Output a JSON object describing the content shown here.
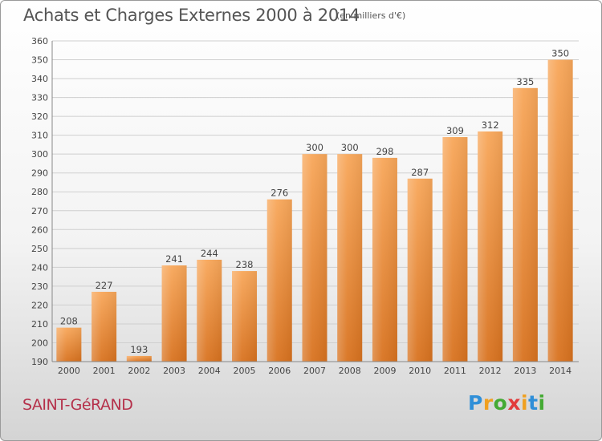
{
  "title": "Achats et Charges Externes 2000 à 2014",
  "subtitle": "(en milliers d'€)",
  "commune": "SAINT-GéRAND",
  "logo": {
    "letters": [
      "P",
      "r",
      "o",
      "x",
      "i",
      "t",
      "i"
    ],
    "colors": [
      "#2f8fd8",
      "#f0a020",
      "#44aa33",
      "#e23b3b",
      "#f0a020",
      "#2f8fd8",
      "#44aa33"
    ]
  },
  "chart_data": {
    "type": "bar",
    "title": "Achats et Charges Externes 2000 à 2014",
    "subtitle": "(en milliers d'€)",
    "categories": [
      "2000",
      "2001",
      "2002",
      "2003",
      "2004",
      "2005",
      "2006",
      "2007",
      "2008",
      "2009",
      "2010",
      "2011",
      "2012",
      "2013",
      "2014"
    ],
    "values": [
      208,
      227,
      193,
      241,
      244,
      238,
      276,
      300,
      300,
      298,
      287,
      309,
      312,
      335,
      350
    ],
    "ylim": [
      190,
      360
    ],
    "ytick_step": 10,
    "grid": true,
    "bar_color": "#f0903a"
  }
}
